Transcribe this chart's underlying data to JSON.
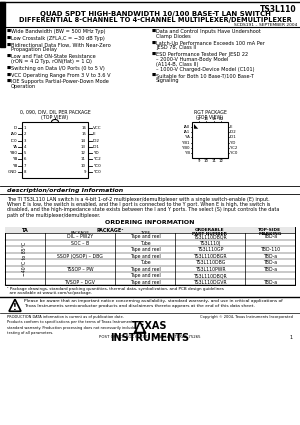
{
  "title_part": "TS3L110",
  "title_line1": "QUAD SPDT HIGH-BANDWIDTH 10/100 BASE-T LAN SWITCH",
  "title_line2": "DIFFERENTIAL 8-CHANNEL TO 4-CHANNEL MULTIPLEXER/DEMULTIPLEXER",
  "subtitle_doc": "SCDS191 – SEPTEMBER 2004",
  "bullet_left": [
    "Wide Bandwidth (BW = 500 MHz Typ)",
    "Low Crosstalk (ZFLA,C = −30 dB Typ)",
    "Bidirectional Data Flow, With Near-Zero\n  Propagation Delay",
    "Low and Flat ON-State Resistance\n  (rON = 4 Ω Typ, rON(flat) = 1 Ω)",
    "Switching on Data I/O Ports (0 to 5 V)",
    "VCC Operating Range From 3 V to 3.6 V",
    "IOE Supports Partial-Power-Down Mode\n  Operation"
  ],
  "bullet_right": [
    "Data and Control Inputs Have Undershoot\n  Clamp Diodes",
    "Latch-Up Performance Exceeds 100 mA Per\n  JESD 78, Class II",
    "ESD Performance Tested Per JESD 22\n  – 2000-V Human-Body Model\n     (A114-B, Class II)\n  – 1000-V Charged-Device Model (C101)",
    "Suitable for Both 10 Base-T/100 Base-T\n  Signaling"
  ],
  "pkg1_label": "0, 090, DIV, DIL PER PACKAGE",
  "pkg1_sub": "(TOP VIEW)",
  "pkg2_label": "RGT PACKAGE",
  "pkg2_sub": "(TOP VIEW)",
  "dip_left_pins": [
    "D",
    "IA0",
    "IC0",
    "YA",
    "YB0",
    "YB",
    "YB",
    "GND"
  ],
  "dip_right_pins": [
    "VCC",
    "E",
    "IO2",
    "IO1",
    "YD",
    "YC2",
    "YC0",
    "YC0"
  ],
  "desc_header": "description/ordering Information",
  "desc_text1": "The TI TS3L110 LAN switch is a 4-bit 1-of-2 multiplexer/demultiplexer with a single switch-enable (E) input.",
  "desc_text2": "When E is low, the switch is enabled, and the I port is connected to the Y port. When E is high, the switch is",
  "desc_text3": "disabled, and the high-impedance state exists between the I and Y ports. The select (S) input controls the data",
  "desc_text4": "path of the multiplexer/demultiplexer.",
  "ord_header": "ORDERING INFORMATION",
  "col_ta": "TA",
  "col_pkg": "PACKAGE¹",
  "col_part": "ORDERABLE\nPART NUMBER",
  "col_mark": "TOP-SIDE\nMARKING",
  "temp_range": "−40°C to 85°C",
  "table_rows": [
    [
      "DIL – PW2Y",
      "Tape and reel",
      "TS3L110DBQR",
      "TBD-a"
    ],
    [
      "SOC – B",
      "Tube",
      "TS3L110J",
      ""
    ],
    [
      "",
      "Tape and reel",
      "TS3L110GP",
      "TBD-110"
    ],
    [
      "SSOP (QSOP) – DBG",
      "Tape and reel",
      "TS3L110DBGR",
      "TBD-a"
    ],
    [
      "",
      "Tube",
      "TS3L110DBG",
      "TBD-a"
    ],
    [
      "TSSOP – PW",
      "Tape and reel",
      "TS3L110PWR",
      "TBD-a"
    ],
    [
      "",
      "Tape and reel",
      "TS3L110DBQR",
      ""
    ],
    [
      "TVSOP – DGV",
      "Tape and reel",
      "TS3L110DGVR",
      "TBD-a"
    ]
  ],
  "footnote1": "¹ Package drawings, standard packing quantities, thermal data, symbolization, and PCB design guidelines",
  "footnote2": "  are available at www.ti.com/sc/package.",
  "warn_text1": "Please be aware that an important notice concerning availability, standard warranty, and use in critical applications of",
  "warn_text2": "Texas Instruments semiconductor products and disclaimers thereto appears at the end of this data sheet.",
  "prod_text": "PRODUCTION DATA information is current as of publication date.\nProducts conform to specifications per the terms of Texas Instruments\nstandard warranty. Production processing does not necessarily include\ntesting of all parameters.",
  "copy_text": "Copyright © 2004, Texas Instruments Incorporated",
  "ti_name": "TEXAS\nINSTRUMENTS",
  "addr_text": "POST OFFICE BOX 655303  •  DALLAS, TEXAS 75265",
  "page_no": "1",
  "bg": "#ffffff",
  "black": "#000000",
  "gray": "#888888"
}
